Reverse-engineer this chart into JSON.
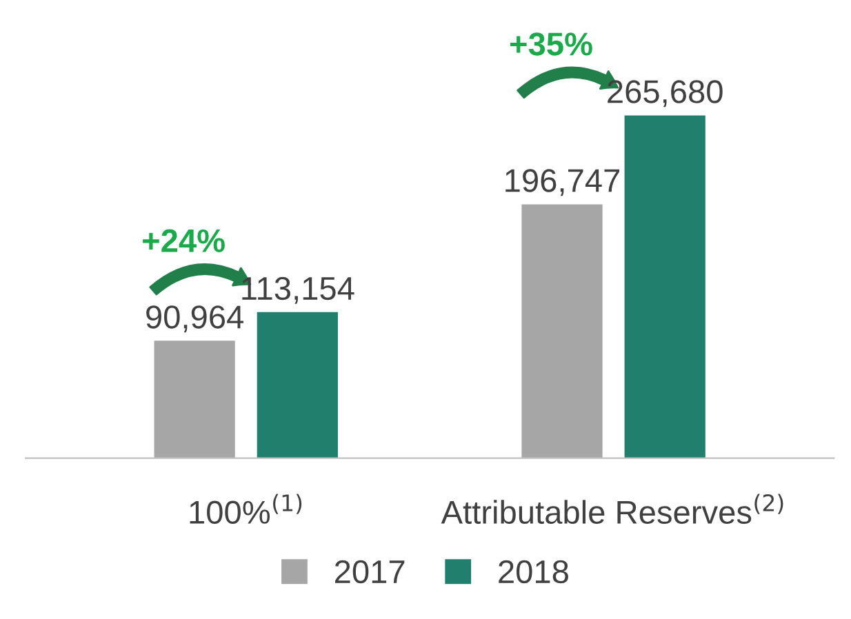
{
  "chart_data": {
    "type": "bar",
    "categories": [
      "100%$^{(1)}$",
      "Attributable Reserves$^{(2)}$"
    ],
    "series": [
      {
        "name": "2017",
        "color": "#a6a6a6",
        "values": [
          90964,
          196747
        ],
        "value_labels": [
          "90,964",
          "196,747"
        ]
      },
      {
        "name": "2018",
        "color": "#217f6e",
        "values": [
          113154,
          265680
        ],
        "value_labels": [
          "113,154",
          "265,680"
        ]
      }
    ],
    "legend": "bottom",
    "grid": false,
    "annotations": [
      "+24%",
      "+35%"
    ]
  }
}
